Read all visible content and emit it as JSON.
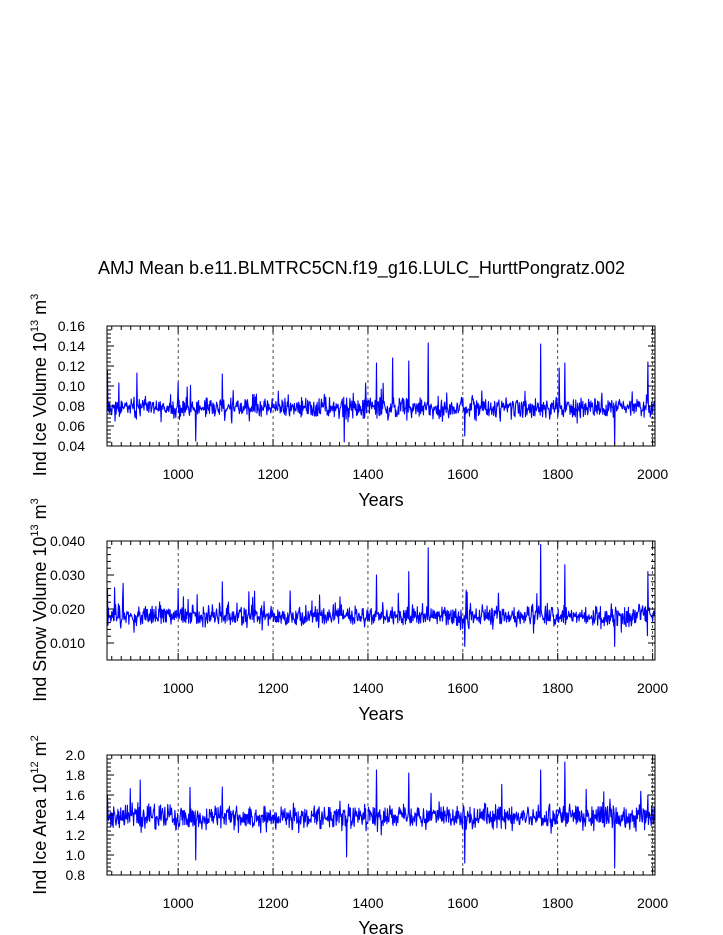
{
  "title": "AMJ Mean b.e11.BLMTRC5CN.f19_g16.LULC_HurttPongratz.002",
  "chart_data": [
    {
      "type": "line",
      "ylabel": "Ind Ice Volume 10",
      "ylabel_exp": "13",
      "ylabel_unit": " m",
      "ylabel_unit_exp": "3",
      "xlabel": "Years",
      "xlim": [
        850,
        2005
      ],
      "ylim": [
        0.04,
        0.16
      ],
      "xticks": [
        1000,
        1200,
        1400,
        1600,
        1800,
        2000
      ],
      "xtick_labels": [
        "1000",
        "1200",
        "1400",
        "1600",
        "1800",
        "2000"
      ],
      "yticks": [
        0.04,
        0.06,
        0.08,
        0.1,
        0.12,
        0.14,
        0.16
      ],
      "ytick_labels": [
        "0.04",
        "0.06",
        "0.08",
        "0.10",
        "0.12",
        "0.14",
        "0.16"
      ],
      "series_color": "#0000ff",
      "mean": 0.078,
      "spread": 0.0095,
      "seed": 11,
      "spikes": [
        {
          "year": 851,
          "value": 0.115
        },
        {
          "year": 913,
          "value": 0.113
        },
        {
          "year": 1000,
          "value": 0.104
        },
        {
          "year": 1093,
          "value": 0.112
        },
        {
          "year": 1395,
          "value": 0.103
        },
        {
          "year": 1418,
          "value": 0.123
        },
        {
          "year": 1452,
          "value": 0.128
        },
        {
          "year": 1486,
          "value": 0.125
        },
        {
          "year": 1527,
          "value": 0.143
        },
        {
          "year": 1764,
          "value": 0.142
        },
        {
          "year": 1803,
          "value": 0.118
        },
        {
          "year": 1815,
          "value": 0.123
        },
        {
          "year": 1990,
          "value": 0.124
        },
        {
          "year": 1037,
          "value": 0.045
        },
        {
          "year": 1350,
          "value": 0.044
        },
        {
          "year": 1920,
          "value": 0.042
        },
        {
          "year": 1604,
          "value": 0.05
        }
      ]
    },
    {
      "type": "line",
      "ylabel": "Ind Snow Volume 10",
      "ylabel_exp": "13",
      "ylabel_unit": " m",
      "ylabel_unit_exp": "3",
      "xlabel": "Years",
      "xlim": [
        850,
        2005
      ],
      "ylim": [
        0.005,
        0.04
      ],
      "xticks": [
        1000,
        1200,
        1400,
        1600,
        1800,
        2000
      ],
      "xtick_labels": [
        "1000",
        "1200",
        "1400",
        "1600",
        "1800",
        "2000"
      ],
      "yticks": [
        0.01,
        0.02,
        0.03,
        0.04
      ],
      "ytick_labels": [
        "0.010",
        "0.020",
        "0.030",
        "0.040"
      ],
      "series_color": "#0000ff",
      "mean": 0.018,
      "spread": 0.0028,
      "seed": 23,
      "spikes": [
        {
          "year": 851,
          "value": 0.026
        },
        {
          "year": 1000,
          "value": 0.026
        },
        {
          "year": 1093,
          "value": 0.028
        },
        {
          "year": 1418,
          "value": 0.03
        },
        {
          "year": 1486,
          "value": 0.031
        },
        {
          "year": 1527,
          "value": 0.038
        },
        {
          "year": 1764,
          "value": 0.039
        },
        {
          "year": 1815,
          "value": 0.033
        },
        {
          "year": 1990,
          "value": 0.031
        },
        {
          "year": 1604,
          "value": 0.009
        },
        {
          "year": 1920,
          "value": 0.009
        }
      ]
    },
    {
      "type": "line",
      "ylabel": "Ind Ice Area 10",
      "ylabel_exp": "12",
      "ylabel_unit": " m",
      "ylabel_unit_exp": "2",
      "xlabel": "Years",
      "xlim": [
        850,
        2005
      ],
      "ylim": [
        0.8,
        2.0
      ],
      "xticks": [
        1000,
        1200,
        1400,
        1600,
        1800,
        2000
      ],
      "xtick_labels": [
        "1000",
        "1200",
        "1400",
        "1600",
        "1800",
        "2000"
      ],
      "yticks": [
        0.8,
        1.0,
        1.2,
        1.4,
        1.6,
        1.8,
        2.0
      ],
      "ytick_labels": [
        "0.8",
        "1.0",
        "1.2",
        "1.4",
        "1.6",
        "1.8",
        "2.0"
      ],
      "series_color": "#0000ff",
      "mean": 1.38,
      "spread": 0.11,
      "seed": 37,
      "spikes": [
        {
          "year": 851,
          "value": 1.6
        },
        {
          "year": 920,
          "value": 1.75
        },
        {
          "year": 1093,
          "value": 1.68
        },
        {
          "year": 1418,
          "value": 1.85
        },
        {
          "year": 1486,
          "value": 1.82
        },
        {
          "year": 1764,
          "value": 1.85
        },
        {
          "year": 1815,
          "value": 1.93
        },
        {
          "year": 1990,
          "value": 1.6
        },
        {
          "year": 1037,
          "value": 0.95
        },
        {
          "year": 1604,
          "value": 0.92
        },
        {
          "year": 1920,
          "value": 0.87
        },
        {
          "year": 1355,
          "value": 0.98
        }
      ]
    }
  ]
}
